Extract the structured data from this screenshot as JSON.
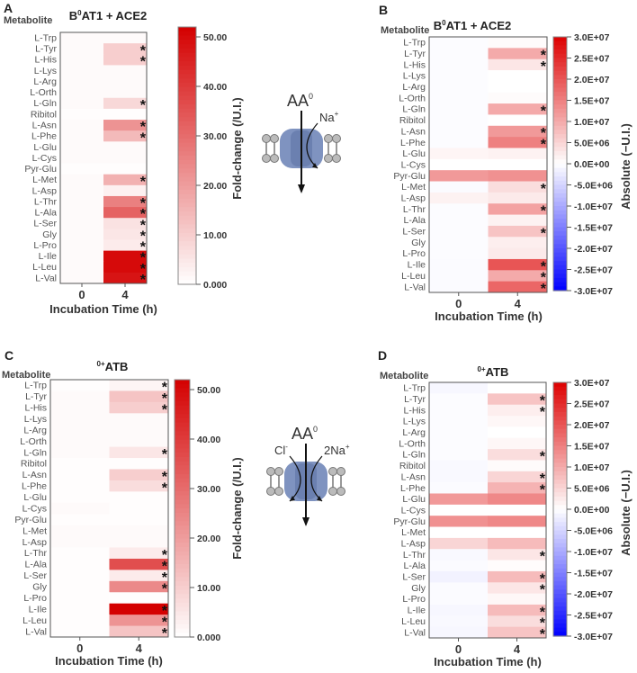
{
  "metabolites": [
    "L-Trp",
    "L-Tyr",
    "L-His",
    "L-Lys",
    "L-Arg",
    "L-Orth",
    "L-Gln",
    "Ribitol",
    "L-Asn",
    "L-Phe",
    "L-Glu",
    "L-Cys",
    "Pyr-Glu",
    "L-Met",
    "L-Asp",
    "L-Thr",
    "L-Ala",
    "L-Ser",
    "Gly",
    "L-Pro",
    "L-Ile",
    "L-Leu",
    "L-Val"
  ],
  "chart_data": [
    {
      "panel": "A",
      "type": "heatmap",
      "title_main": "AT1 + ACE2",
      "title_prefix": "B",
      "title_sup": "0",
      "row_header": "Metabolite",
      "xlabel": "Incubation Time (h)",
      "categories": [
        "0",
        "4"
      ],
      "colorbar_label": "Fold-change (/U.I.)",
      "scale": "sequential",
      "range": [
        0,
        52
      ],
      "colors": {
        "low": "#ffffff",
        "high": "#d40000"
      },
      "colorbar_ticks": [
        0,
        10,
        20,
        30,
        40,
        50
      ],
      "colorbar_tick_labels": [
        "0.000",
        "10.00",
        "20.00",
        "30.00",
        "40.00",
        "50.00"
      ],
      "values": {
        "0": [
          1,
          1,
          1,
          1,
          1,
          1,
          1,
          0.5,
          1,
          1,
          1,
          1,
          0.5,
          1,
          1,
          1,
          1,
          1,
          1,
          1,
          1,
          1,
          1
        ],
        "4": [
          1,
          10,
          10,
          1,
          1,
          1,
          8,
          0.5,
          22,
          14,
          1,
          1,
          0.5,
          16,
          3,
          26,
          32,
          6,
          5,
          4,
          50,
          50,
          48
        ]
      },
      "significant": [
        "L-Tyr",
        "L-His",
        "L-Gln",
        "L-Asn",
        "L-Phe",
        "L-Met",
        "L-Thr",
        "L-Ala",
        "L-Ser",
        "Gly",
        "L-Pro",
        "L-Ile",
        "L-Leu",
        "L-Val"
      ]
    },
    {
      "panel": "B",
      "type": "heatmap",
      "title_main": "AT1 + ACE2",
      "title_prefix": "B",
      "title_sup": "0",
      "row_header": "Metabolite",
      "xlabel": "Incubation Time (h)",
      "categories": [
        "0",
        "4"
      ],
      "colorbar_label": "Absolute (−U.I.)",
      "scale": "diverging",
      "range": [
        -30000000,
        30000000
      ],
      "colors": {
        "low": "#0000ff",
        "mid": "#ffffff",
        "high": "#dd0000"
      },
      "colorbar_ticks": [
        30000000,
        25000000,
        20000000,
        15000000,
        10000000,
        5000000,
        0,
        -5000000,
        -10000000,
        -15000000,
        -20000000,
        -25000000,
        -30000000
      ],
      "colorbar_tick_labels": [
        "3.0E+07",
        "2.5E+07",
        "2.0E+07",
        "1.5E+07",
        "1.0E+07",
        "5.0E+06",
        "0.0E+00",
        "-5.0E+06",
        "-1.0E+07",
        "-1.5E+07",
        "-2.0E+07",
        "-2.5E+07",
        "-3.0E+07"
      ],
      "values": {
        "0": [
          -300000,
          -300000,
          -300000,
          -300000,
          -300000,
          -300000,
          -300000,
          -300000,
          -300000,
          -300000,
          1200000,
          0,
          12000000,
          -500000,
          1500000,
          -300000,
          -300000,
          -300000,
          -300000,
          -300000,
          -500000,
          -500000,
          -500000
        ],
        "4": [
          500000,
          10000000,
          3000000,
          0,
          0,
          500000,
          10000000,
          0,
          12000000,
          15000000,
          1500000,
          0,
          13000000,
          4000000,
          2500000,
          11000000,
          1500000,
          7000000,
          2000000,
          2500000,
          20000000,
          10000000,
          18000000
        ]
      },
      "significant": [
        "L-Tyr",
        "L-His",
        "L-Gln",
        "L-Asn",
        "L-Phe",
        "L-Met",
        "L-Thr",
        "L-Ser",
        "L-Ile",
        "L-Leu",
        "L-Val"
      ]
    },
    {
      "panel": "C",
      "type": "heatmap",
      "title_main": "ATB",
      "title_prefix": "",
      "title_sup": "0+",
      "row_header": "Metabolite",
      "xlabel": "Incubation Time (h)",
      "categories": [
        "0",
        "4"
      ],
      "colorbar_label": "Fold-change (/U.I.)",
      "scale": "sequential",
      "range": [
        0,
        52
      ],
      "colors": {
        "low": "#ffffff",
        "high": "#d40000"
      },
      "colorbar_ticks": [
        0,
        10,
        20,
        30,
        40,
        50
      ],
      "colorbar_tick_labels": [
        "0.000",
        "10.00",
        "20.00",
        "30.00",
        "40.00",
        "50.00"
      ],
      "values": {
        "0": [
          0.5,
          1,
          1,
          1,
          1,
          1,
          1,
          0.5,
          0.5,
          0.5,
          0.5,
          1,
          0.5,
          1,
          1,
          0.5,
          0.5,
          0.5,
          0.5,
          0.5,
          0.5,
          0.5,
          0.5
        ],
        "4": [
          2,
          12,
          10,
          1,
          1,
          1,
          5,
          0.5,
          10,
          7,
          0.5,
          0.5,
          0.5,
          1,
          1,
          4,
          36,
          4,
          24,
          0.3,
          52,
          22,
          12
        ]
      },
      "significant": [
        "L-Trp",
        "L-Tyr",
        "L-His",
        "L-Gln",
        "L-Asn",
        "L-Phe",
        "L-Thr",
        "L-Ala",
        "L-Ser",
        "Gly",
        "L-Ile",
        "L-Leu",
        "L-Val"
      ]
    },
    {
      "panel": "D",
      "type": "heatmap",
      "title_main": "ATB",
      "title_prefix": "",
      "title_sup": "0+",
      "row_header": "Metabolite",
      "xlabel": "Incubation Time (h)",
      "categories": [
        "0",
        "4"
      ],
      "colorbar_label": "Absolute (−U.I.)",
      "scale": "diverging",
      "range": [
        -30000000,
        30000000
      ],
      "colors": {
        "low": "#0000ff",
        "mid": "#ffffff",
        "high": "#dd0000"
      },
      "colorbar_ticks": [
        30000000,
        25000000,
        20000000,
        15000000,
        10000000,
        5000000,
        0,
        -5000000,
        -10000000,
        -15000000,
        -20000000,
        -25000000,
        -30000000
      ],
      "colorbar_tick_labels": [
        "3.0E+07",
        "2.5E+07",
        "2.0E+07",
        "1.5E+07",
        "1.0E+07",
        "5.0E+06",
        "0.0E+00",
        "-5.0E+06",
        "-1.0E+07",
        "-1.5E+07",
        "-2.0E+07",
        "-2.5E+07",
        "-3.0E+07"
      ],
      "values": {
        "0": [
          -1000000,
          -300000,
          -300000,
          -300000,
          -300000,
          -300000,
          -300000,
          -700000,
          -700000,
          -500000,
          12000000,
          0,
          13000000,
          0,
          5000000,
          -700000,
          -500000,
          -1500000,
          -500000,
          -500000,
          -1000000,
          -700000,
          -1000000
        ],
        "4": [
          0,
          7000000,
          2000000,
          1000000,
          0,
          1000000,
          4000000,
          500000,
          5000000,
          9000000,
          14000000,
          0,
          14000000,
          0,
          8000000,
          3000000,
          300000,
          8000000,
          3000000,
          1000000,
          8000000,
          4000000,
          7000000
        ]
      },
      "significant": [
        "L-Tyr",
        "L-His",
        "L-Gln",
        "L-Asn",
        "L-Phe",
        "L-Thr",
        "L-Ser",
        "Gly",
        "L-Ile",
        "L-Leu",
        "L-Val"
      ]
    }
  ],
  "diagrams": [
    {
      "substrate": "AA",
      "substrate_sup": "0",
      "ions": [
        {
          "label": "Na",
          "sup": "+"
        }
      ]
    },
    {
      "substrate": "AA",
      "substrate_sup": "0",
      "ions": [
        {
          "label": "Cl",
          "sup": "-"
        },
        {
          "label": "2Na",
          "sup": "+"
        }
      ]
    }
  ]
}
